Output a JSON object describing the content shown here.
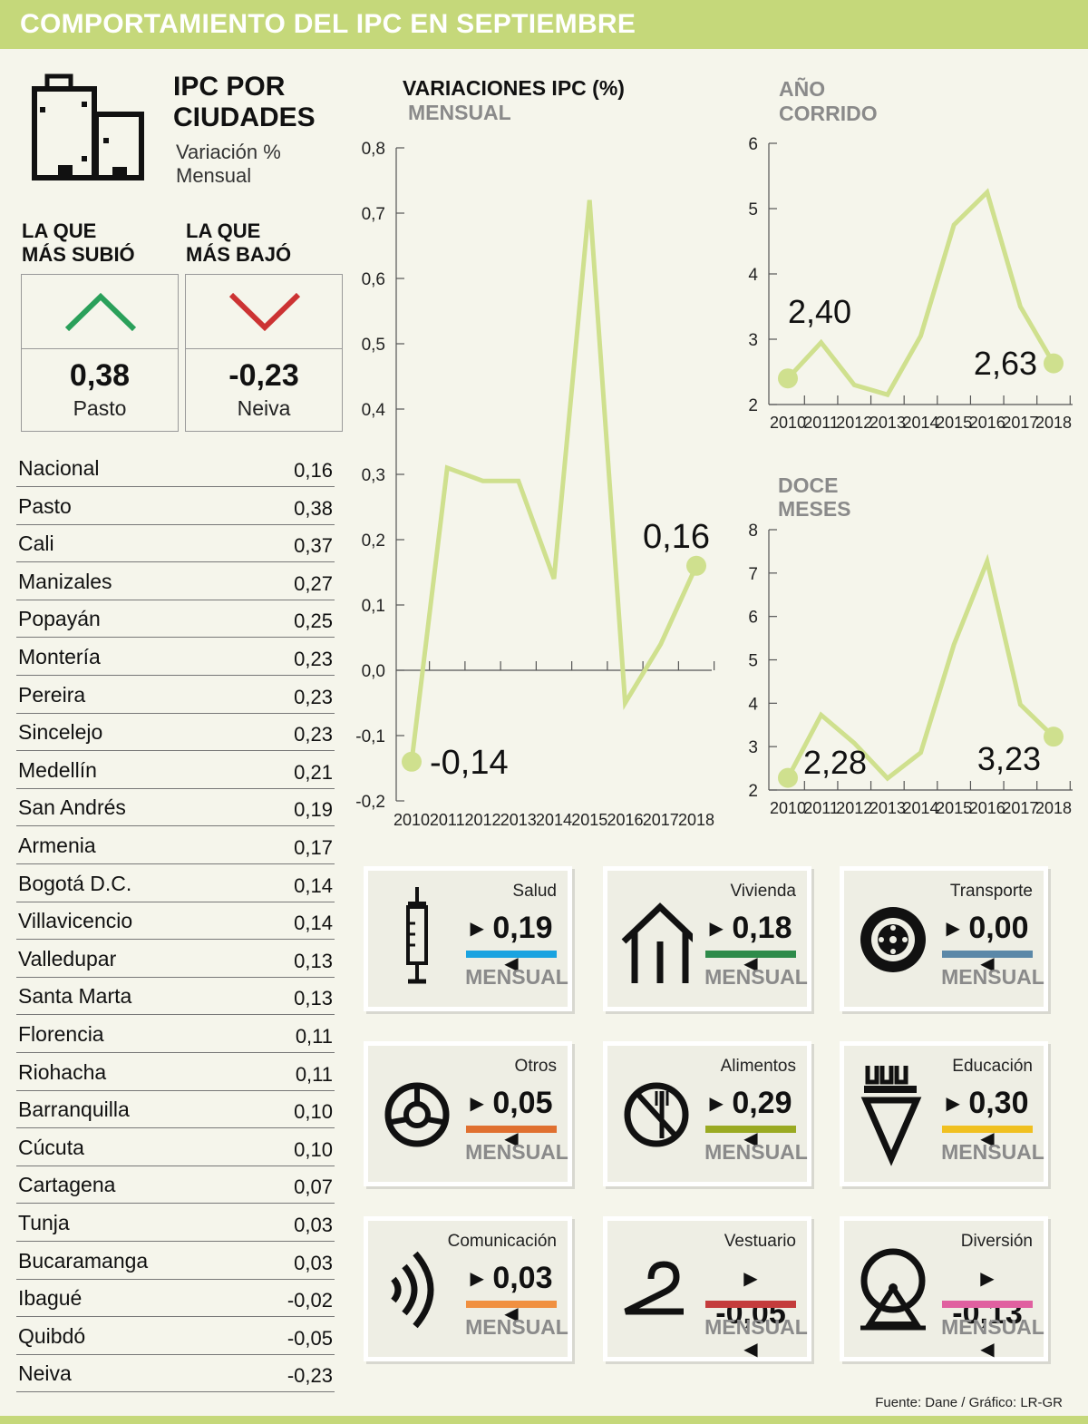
{
  "title": "COMPORTAMIENTO DEL IPC EN SEPTIEMBRE",
  "cities_panel": {
    "title_line1": "IPC POR",
    "title_line2": "CIUDADES",
    "subtitle_line1": "Variación %",
    "subtitle_line2": "Mensual",
    "up_label_line1": "LA QUE",
    "up_label_line2": "MÁS SUBIÓ",
    "down_label_line1": "LA QUE",
    "down_label_line2": "MÁS BAJÓ",
    "up_value": "0,38",
    "up_city": "Pasto",
    "down_value": "-0,23",
    "down_city": "Neiva",
    "up_color": "#2aa05a",
    "down_color": "#cc3333",
    "rows": [
      {
        "city": "Nacional",
        "value": "0,16"
      },
      {
        "city": "Pasto",
        "value": "0,38"
      },
      {
        "city": "Cali",
        "value": "0,37"
      },
      {
        "city": "Manizales",
        "value": "0,27"
      },
      {
        "city": "Popayán",
        "value": "0,25"
      },
      {
        "city": "Montería",
        "value": "0,23"
      },
      {
        "city": "Pereira",
        "value": "0,23"
      },
      {
        "city": "Sincelejo",
        "value": "0,23"
      },
      {
        "city": "Medellín",
        "value": "0,21"
      },
      {
        "city": "San Andrés",
        "value": "0,19"
      },
      {
        "city": "Armenia",
        "value": "0,17"
      },
      {
        "city": "Bogotá D.C.",
        "value": "0,14"
      },
      {
        "city": "Villavicencio",
        "value": "0,14"
      },
      {
        "city": "Valledupar",
        "value": "0,13"
      },
      {
        "city": "Santa Marta",
        "value": "0,13"
      },
      {
        "city": "Florencia",
        "value": "0,11"
      },
      {
        "city": "Riohacha",
        "value": "0,11"
      },
      {
        "city": "Barranquilla",
        "value": "0,10"
      },
      {
        "city": "Cúcuta",
        "value": "0,10"
      },
      {
        "city": "Cartagena",
        "value": "0,07"
      },
      {
        "city": "Tunja",
        "value": "0,03"
      },
      {
        "city": "Bucaramanga",
        "value": "0,03"
      },
      {
        "city": "Ibagué",
        "value": "-0,02"
      },
      {
        "city": "Quibdó",
        "value": "-0,05"
      },
      {
        "city": "Neiva",
        "value": "-0,23"
      }
    ]
  },
  "chart_data": [
    {
      "type": "line",
      "title": "VARIACIONES IPC (%)",
      "subtitle": "MENSUAL",
      "x": [
        "2010",
        "2011",
        "2012",
        "2013",
        "2014",
        "2015",
        "2016",
        "2017",
        "2018"
      ],
      "values": [
        -0.14,
        0.31,
        0.29,
        0.29,
        0.14,
        0.72,
        -0.05,
        0.04,
        0.16
      ],
      "ylim": [
        -0.2,
        0.8
      ],
      "yticks": [
        "-0,2",
        "-0,1",
        "0,0",
        "0,1",
        "0,2",
        "0,3",
        "0,4",
        "0,5",
        "0,6",
        "0,7",
        "0,8"
      ],
      "start_label": "-0,14",
      "end_label": "0,16",
      "line_color": "#cfe08e"
    },
    {
      "type": "line",
      "title": "AÑO",
      "subtitle": "CORRIDO",
      "x": [
        "2010",
        "2011",
        "2012",
        "2013",
        "2014",
        "2015",
        "2016",
        "2017",
        "2018"
      ],
      "values": [
        2.4,
        2.95,
        2.3,
        2.15,
        3.05,
        4.75,
        5.25,
        3.5,
        2.63
      ],
      "ylim": [
        2,
        6
      ],
      "yticks": [
        "2",
        "3",
        "4",
        "5",
        "6"
      ],
      "start_label": "2,40",
      "end_label": "2,63",
      "line_color": "#cfe08e"
    },
    {
      "type": "line",
      "title": "DOCE",
      "subtitle": "MESES",
      "x": [
        "2010",
        "2011",
        "2012",
        "2013",
        "2014",
        "2015",
        "2016",
        "2017",
        "2018"
      ],
      "values": [
        2.28,
        3.73,
        3.08,
        2.27,
        2.86,
        5.35,
        7.27,
        3.97,
        3.23
      ],
      "ylim": [
        2,
        8
      ],
      "yticks": [
        "2",
        "3",
        "4",
        "5",
        "6",
        "7",
        "8"
      ],
      "start_label": "2,28",
      "end_label": "3,23",
      "line_color": "#cfe08e"
    }
  ],
  "categories": [
    {
      "name": "Salud",
      "value": "0,19",
      "period": "MENSUAL",
      "color": "#1aa3e0",
      "icon": "syringe-icon"
    },
    {
      "name": "Vivienda",
      "value": "0,18",
      "period": "MENSUAL",
      "color": "#2e8b4a",
      "icon": "house-icon"
    },
    {
      "name": "Transporte",
      "value": "0,00",
      "period": "MENSUAL",
      "color": "#5b88a8",
      "icon": "wheel-icon"
    },
    {
      "name": "Otros",
      "value": "0,05",
      "period": "MENSUAL",
      "color": "#e07030",
      "icon": "lifebuoy-icon"
    },
    {
      "name": "Alimentos",
      "value": "0,29",
      "period": "MENSUAL",
      "color": "#9aaa22",
      "icon": "no-fork-icon"
    },
    {
      "name": "Educación",
      "value": "0,30",
      "period": "MENSUAL",
      "color": "#f0c020",
      "icon": "crayons-icon"
    },
    {
      "name": "Comunicación",
      "value": "0,03",
      "period": "MENSUAL",
      "color": "#f09040",
      "icon": "signal-waves-icon"
    },
    {
      "name": "Vestuario",
      "value": "-0,05",
      "period": "MENSUAL",
      "color": "#c43c3c",
      "icon": "hanger-icon"
    },
    {
      "name": "Diversión",
      "value": "-0,13",
      "period": "MENSUAL",
      "color": "#e060a0",
      "icon": "ferris-wheel-icon"
    }
  ],
  "source": "Fuente: Dane / Gráfico: LR-GR"
}
